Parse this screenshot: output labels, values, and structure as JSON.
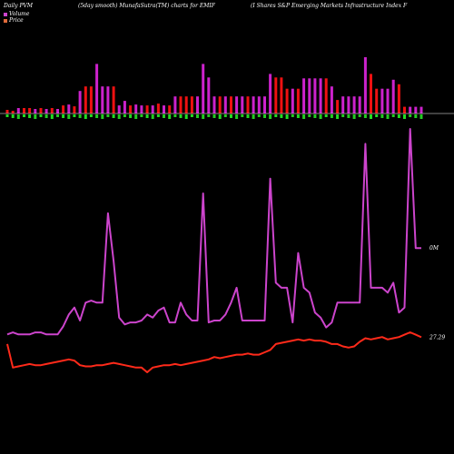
{
  "header": {
    "left": "Daily PVM",
    "middle": "(5day smooth) MunafaSutra(TM) charts for EMIF",
    "right": "(I                Shares S&P Emerging Markets Infrastructure   Index F"
  },
  "legend": {
    "volume_label": "Volume",
    "price_label": "Price",
    "volume_color": "#cc44cc",
    "price_color": "#e06a3a"
  },
  "chart_data": {
    "type": "line",
    "volume_bars": {
      "values": [
        8,
        6,
        12,
        12,
        12,
        10,
        12,
        10,
        12,
        10,
        18,
        20,
        16,
        50,
        60,
        60,
        110,
        60,
        60,
        60,
        18,
        28,
        18,
        20,
        18,
        18,
        18,
        22,
        18,
        18,
        38,
        38,
        38,
        38,
        38,
        110,
        80,
        38,
        38,
        38,
        38,
        38,
        38,
        38,
        38,
        38,
        38,
        88,
        80,
        80,
        55,
        55,
        55,
        78,
        78,
        78,
        78,
        78,
        60,
        30,
        38,
        38,
        38,
        38,
        125,
        88,
        55,
        55,
        55,
        75,
        65,
        15,
        15,
        15,
        15
      ],
      "signs": [
        -1,
        -1,
        1,
        -1,
        -1,
        1,
        -1,
        1,
        -1,
        1,
        -1,
        1,
        -1,
        1,
        -1,
        -1,
        1,
        1,
        1,
        -1,
        1,
        1,
        -1,
        1,
        1,
        -1,
        1,
        -1,
        1,
        -1,
        1,
        -1,
        -1,
        -1,
        1,
        1,
        1,
        1,
        -1,
        1,
        -1,
        1,
        1,
        -1,
        1,
        1,
        1,
        1,
        -1,
        -1,
        -1,
        1,
        -1,
        1,
        1,
        1,
        1,
        -1,
        1,
        -1,
        1,
        1,
        1,
        1,
        1,
        -1,
        -1,
        1,
        1,
        1,
        -1,
        -1,
        1,
        1,
        1
      ]
    },
    "series": [
      {
        "name": "Volume",
        "values": [
          8,
          10,
          8,
          8,
          8,
          10,
          10,
          8,
          8,
          8,
          16,
          28,
          35,
          22,
          40,
          42,
          40,
          40,
          130,
          82,
          25,
          18,
          20,
          20,
          22,
          28,
          25,
          32,
          35,
          20,
          20,
          40,
          28,
          22,
          22,
          150,
          20,
          22,
          22,
          28,
          40,
          55,
          22,
          22,
          22,
          22,
          22,
          165,
          60,
          55,
          55,
          20,
          90,
          55,
          50,
          30,
          25,
          15,
          20,
          40,
          40,
          40,
          40,
          40,
          200,
          55,
          55,
          55,
          50,
          60,
          30,
          35,
          215,
          95,
          95
        ],
        "color": "#cc44cc"
      },
      {
        "name": "Price",
        "values": [
          27.0,
          26.0,
          26.05,
          26.1,
          26.15,
          26.1,
          26.1,
          26.15,
          26.2,
          26.25,
          26.3,
          26.35,
          26.3,
          26.1,
          26.05,
          26.05,
          26.1,
          26.1,
          26.15,
          26.2,
          26.15,
          26.1,
          26.05,
          26.0,
          26.0,
          25.8,
          26.0,
          26.05,
          26.1,
          26.1,
          26.15,
          26.1,
          26.15,
          26.2,
          26.25,
          26.3,
          26.35,
          26.45,
          26.4,
          26.45,
          26.5,
          26.55,
          26.55,
          26.6,
          26.55,
          26.55,
          26.65,
          26.75,
          27.0,
          27.05,
          27.1,
          27.15,
          27.2,
          27.15,
          27.2,
          27.15,
          27.15,
          27.1,
          27.0,
          27.0,
          26.9,
          26.85,
          26.9,
          27.1,
          27.25,
          27.2,
          27.25,
          27.3,
          27.2,
          27.25,
          27.3,
          27.4,
          27.5,
          27.4,
          27.29
        ],
        "color": "#ff2a1a"
      }
    ],
    "labels": {
      "volume_last": "0M",
      "price_last": "27.29"
    },
    "grid": false
  }
}
